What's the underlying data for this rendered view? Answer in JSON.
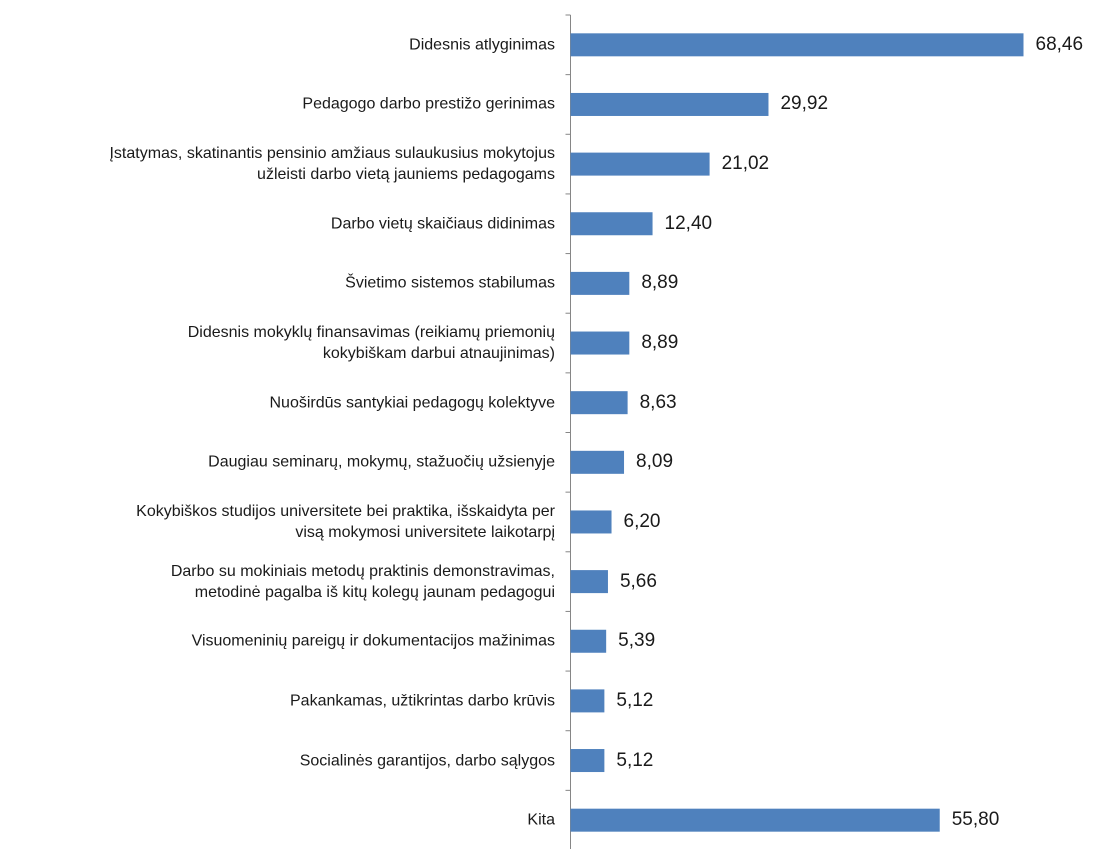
{
  "chart_data": {
    "type": "bar",
    "orientation": "horizontal",
    "color": "#4f81bd",
    "categories": [
      "Didesnis atlyginimas",
      "Pedagogo darbo prestižo gerinimas",
      "Įstatymas, skatinantis pensinio amžiaus sulaukusius mokytojus\nužleisti darbo vietą jauniems pedagogams",
      "Darbo vietų skaičiaus didinimas",
      "Švietimo sistemos stabilumas",
      "Didesnis mokyklų finansavimas (reikiamų priemonių\nkokybiškam darbui atnaujinimas)",
      "Nuoširdūs santykiai pedagogų kolektyve",
      "Daugiau seminarų, mokymų, stažuočių užsienyje",
      "Kokybiškos studijos universitete bei praktika, išskaidyta per\nvisą mokymosi universitete laikotarpį",
      "Darbo su mokiniais metodų praktinis demonstravimas,\nmetodinė pagalba iš kitų kolegų jaunam pedagogui",
      "Visuomeninių pareigų ir dokumentacijos mažinimas",
      "Pakankamas, užtikrintas darbo krūvis",
      "Socialinės garantijos, darbo sąlygos",
      "Kita"
    ],
    "values": [
      68.46,
      29.92,
      21.02,
      12.4,
      8.89,
      8.89,
      8.63,
      8.09,
      6.2,
      5.66,
      5.39,
      5.12,
      5.12,
      55.8
    ],
    "value_labels": [
      "68,46",
      "29,92",
      "21,02",
      "12,40",
      "8,89",
      "8,89",
      "8,63",
      "8,09",
      "6,20",
      "5,66",
      "5,39",
      "5,12",
      "5,12",
      "55,80"
    ]
  }
}
